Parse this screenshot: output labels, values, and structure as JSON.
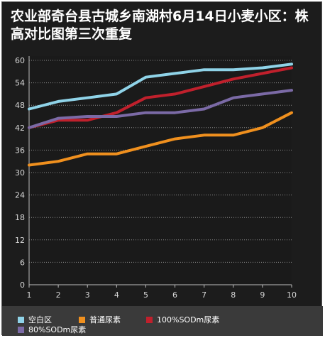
{
  "chart_data": {
    "type": "line",
    "title": "农业部奇台县古城乡南湖村6月14日小麦小区：株高对比图第三次重复",
    "x": [
      1,
      2,
      3,
      4,
      5,
      6,
      7,
      8,
      9,
      10
    ],
    "xlabel": "",
    "ylabel": "",
    "ylim": [
      0,
      60
    ],
    "yticks": [
      0,
      6,
      12,
      18,
      24,
      30,
      36,
      42,
      48,
      54,
      60
    ],
    "grid": true,
    "legend": "bottom",
    "series": [
      {
        "name": "空白区",
        "color": "#8fd3e8",
        "values": [
          47,
          49,
          50,
          51,
          55.5,
          56.5,
          57.5,
          57.5,
          58,
          59
        ]
      },
      {
        "name": "普通尿素",
        "color": "#f0901e",
        "values": [
          32,
          33,
          35,
          35,
          37,
          39,
          40,
          40,
          42,
          46
        ]
      },
      {
        "name": "100%SODm尿素",
        "color": "#c0202c",
        "values": [
          42,
          44,
          44,
          46,
          50,
          51,
          53,
          55,
          56.5,
          58
        ]
      },
      {
        "name": "80%SODm尿素",
        "color": "#7b6aa6",
        "values": [
          42,
          44.5,
          45,
          45,
          46,
          46,
          47,
          50,
          51,
          52
        ]
      }
    ]
  }
}
